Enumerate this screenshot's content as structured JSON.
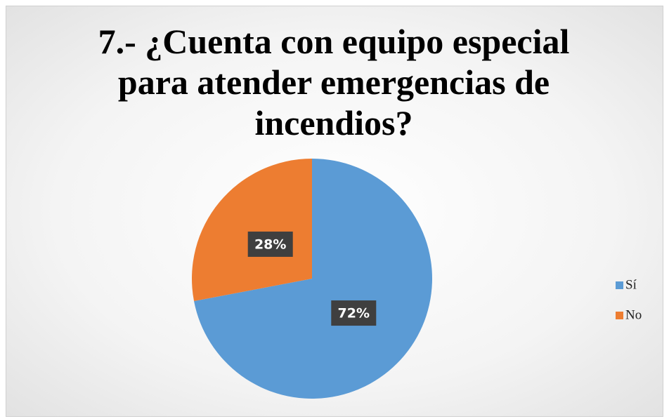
{
  "chart_data": {
    "type": "pie",
    "title": "7.- ¿Cuenta con equipo especial para atender emergencias de incendios?",
    "categories": [
      "Sí",
      "No"
    ],
    "values": [
      72,
      28
    ],
    "value_labels": [
      "72%",
      "28%"
    ],
    "colors": [
      "#5b9bd5",
      "#ed7d31"
    ],
    "legend": "right"
  }
}
